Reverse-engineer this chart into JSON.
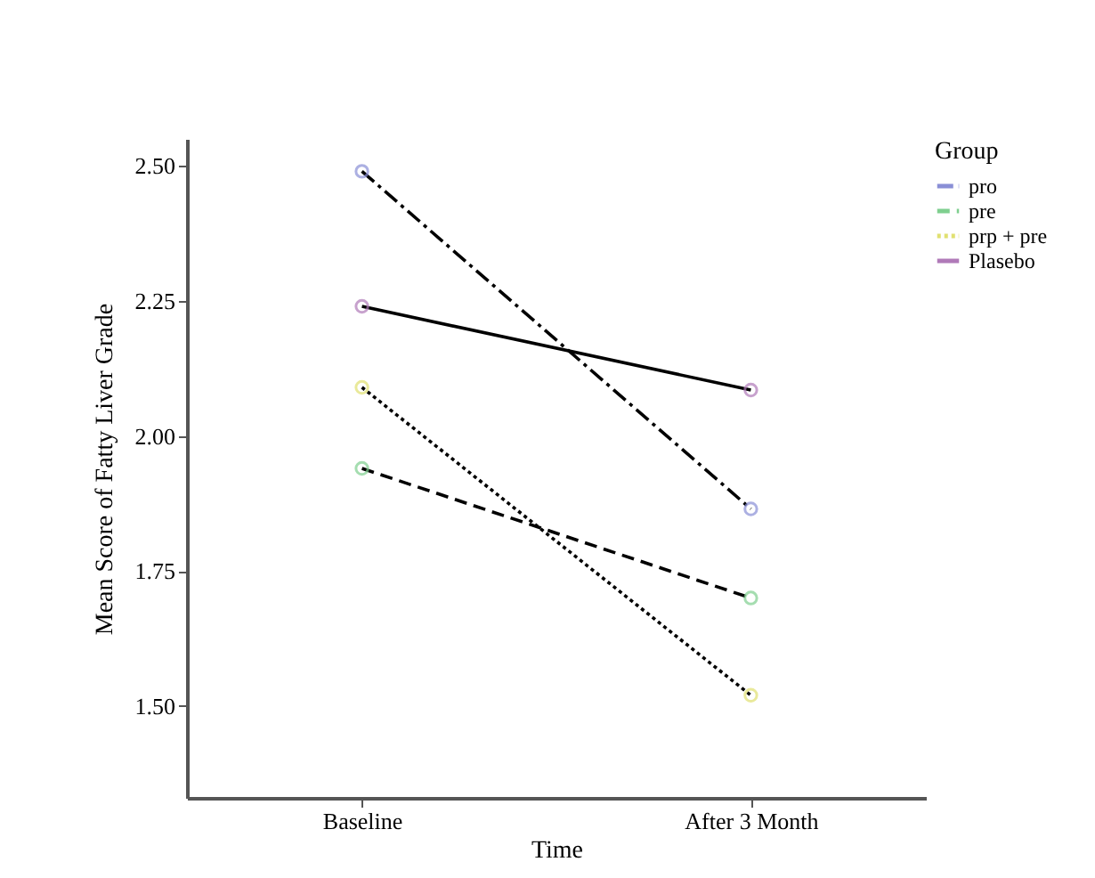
{
  "chart_data": {
    "type": "line",
    "xlabel": "Time",
    "ylabel": "Mean Score of Fatty Liver Grade",
    "legend_title": "Group",
    "legend": "top right",
    "marker": "circle",
    "categories": [
      "Baseline",
      "After 3 Month"
    ],
    "ylim": [
      1.33,
      2.55
    ],
    "yticks": [
      {
        "value": 1.5,
        "label": "1.50"
      },
      {
        "value": 1.75,
        "label": "1.75"
      },
      {
        "value": 2,
        "label": "2.00"
      },
      {
        "value": 2.25,
        "label": "2.25"
      },
      {
        "value": 2.5,
        "label": "2.50"
      }
    ],
    "series": [
      {
        "name": "pro",
        "color": "#8a8fd6",
        "line_style": "dashdot",
        "values": [
          2.49,
          1.865
        ]
      },
      {
        "name": "pre",
        "color": "#7fcf8f",
        "line_style": "dashed",
        "values": [
          1.94,
          1.7
        ]
      },
      {
        "name": "prp + pre",
        "color": "#e0e070",
        "line_style": "dotted",
        "values": [
          2.09,
          1.52
        ]
      },
      {
        "name": "Plasebo",
        "color": "#b07ab8",
        "line_style": "solid",
        "values": [
          2.24,
          2.085
        ]
      }
    ]
  }
}
